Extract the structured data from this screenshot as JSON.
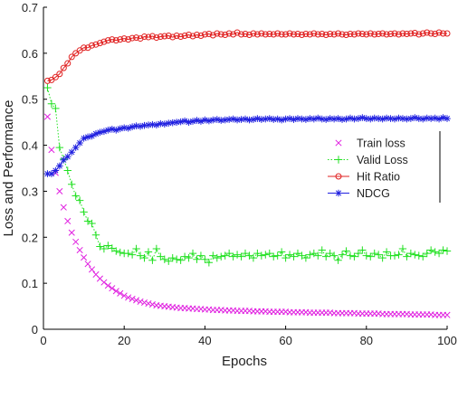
{
  "chart_data": {
    "type": "line",
    "title": "",
    "xlabel": "Epochs",
    "ylabel": "Loss and Performance",
    "xlim": [
      0,
      100
    ],
    "ylim": [
      0,
      0.7
    ],
    "xticks": [
      0,
      20,
      40,
      60,
      80,
      100
    ],
    "yticks": [
      0,
      0.1,
      0.2,
      0.3,
      0.4,
      0.5,
      0.6,
      0.7
    ],
    "xtick_labels": [
      "0",
      "20",
      "40",
      "60",
      "80",
      "100"
    ],
    "ytick_labels": [
      "0",
      "0.1",
      "0.2",
      "0.3",
      "0.4",
      "0.5",
      "0.6",
      "0.7"
    ],
    "grid": false,
    "legend_position": "right",
    "x": [
      1,
      2,
      3,
      4,
      5,
      6,
      7,
      8,
      9,
      10,
      11,
      12,
      13,
      14,
      15,
      16,
      17,
      18,
      19,
      20,
      21,
      22,
      23,
      24,
      25,
      26,
      27,
      28,
      29,
      30,
      31,
      32,
      33,
      34,
      35,
      36,
      37,
      38,
      39,
      40,
      41,
      42,
      43,
      44,
      45,
      46,
      47,
      48,
      49,
      50,
      51,
      52,
      53,
      54,
      55,
      56,
      57,
      58,
      59,
      60,
      61,
      62,
      63,
      64,
      65,
      66,
      67,
      68,
      69,
      70,
      71,
      72,
      73,
      74,
      75,
      76,
      77,
      78,
      79,
      80,
      81,
      82,
      83,
      84,
      85,
      86,
      87,
      88,
      89,
      90,
      91,
      92,
      93,
      94,
      95,
      96,
      97,
      98,
      99,
      100
    ],
    "series": [
      {
        "name": "Train loss",
        "color": "#e020e0",
        "line": "none",
        "marker": "x",
        "values": [
          0.462,
          0.39,
          0.34,
          0.3,
          0.265,
          0.235,
          0.21,
          0.19,
          0.172,
          0.156,
          0.142,
          0.13,
          0.119,
          0.11,
          0.102,
          0.095,
          0.089,
          0.083,
          0.078,
          0.073,
          0.069,
          0.066,
          0.063,
          0.06,
          0.058,
          0.056,
          0.054,
          0.052,
          0.051,
          0.05,
          0.049,
          0.048,
          0.047,
          0.046,
          0.046,
          0.045,
          0.045,
          0.044,
          0.044,
          0.043,
          0.043,
          0.042,
          0.042,
          0.042,
          0.041,
          0.041,
          0.041,
          0.04,
          0.04,
          0.04,
          0.04,
          0.039,
          0.039,
          0.039,
          0.039,
          0.038,
          0.038,
          0.038,
          0.038,
          0.038,
          0.037,
          0.037,
          0.037,
          0.037,
          0.037,
          0.036,
          0.036,
          0.036,
          0.036,
          0.036,
          0.036,
          0.035,
          0.035,
          0.035,
          0.035,
          0.035,
          0.035,
          0.034,
          0.034,
          0.034,
          0.034,
          0.034,
          0.034,
          0.033,
          0.033,
          0.033,
          0.033,
          0.033,
          0.033,
          0.033,
          0.032,
          0.032,
          0.032,
          0.032,
          0.032,
          0.032,
          0.031,
          0.031,
          0.031,
          0.031
        ]
      },
      {
        "name": "Valid Loss",
        "color": "#20e020",
        "line": "dotted",
        "marker": "+",
        "values": [
          0.525,
          0.49,
          0.48,
          0.395,
          0.37,
          0.345,
          0.315,
          0.29,
          0.28,
          0.255,
          0.235,
          0.23,
          0.205,
          0.18,
          0.175,
          0.182,
          0.176,
          0.17,
          0.167,
          0.165,
          0.165,
          0.162,
          0.175,
          0.16,
          0.155,
          0.168,
          0.15,
          0.175,
          0.158,
          0.152,
          0.148,
          0.155,
          0.152,
          0.15,
          0.158,
          0.155,
          0.165,
          0.152,
          0.16,
          0.152,
          0.145,
          0.16,
          0.155,
          0.158,
          0.16,
          0.165,
          0.158,
          0.162,
          0.158,
          0.165,
          0.16,
          0.155,
          0.165,
          0.16,
          0.162,
          0.165,
          0.158,
          0.16,
          0.168,
          0.155,
          0.162,
          0.158,
          0.165,
          0.16,
          0.155,
          0.162,
          0.165,
          0.16,
          0.172,
          0.158,
          0.165,
          0.16,
          0.15,
          0.162,
          0.17,
          0.16,
          0.158,
          0.165,
          0.172,
          0.16,
          0.158,
          0.165,
          0.162,
          0.155,
          0.168,
          0.16,
          0.16,
          0.162,
          0.175,
          0.158,
          0.165,
          0.162,
          0.16,
          0.158,
          0.165,
          0.172,
          0.168,
          0.165,
          0.172,
          0.17
        ]
      },
      {
        "name": "Hit Ratio",
        "color": "#e02020",
        "line": "solid",
        "marker": "o",
        "values": [
          0.54,
          0.542,
          0.548,
          0.555,
          0.568,
          0.578,
          0.592,
          0.6,
          0.606,
          0.612,
          0.612,
          0.617,
          0.619,
          0.622,
          0.625,
          0.628,
          0.63,
          0.628,
          0.63,
          0.632,
          0.63,
          0.633,
          0.634,
          0.632,
          0.636,
          0.635,
          0.637,
          0.634,
          0.636,
          0.637,
          0.638,
          0.635,
          0.638,
          0.636,
          0.638,
          0.64,
          0.637,
          0.64,
          0.638,
          0.641,
          0.642,
          0.639,
          0.643,
          0.641,
          0.64,
          0.643,
          0.641,
          0.645,
          0.641,
          0.642,
          0.64,
          0.643,
          0.641,
          0.643,
          0.641,
          0.642,
          0.641,
          0.643,
          0.641,
          0.641,
          0.643,
          0.641,
          0.642,
          0.64,
          0.642,
          0.641,
          0.643,
          0.641,
          0.642,
          0.64,
          0.642,
          0.641,
          0.643,
          0.641,
          0.64,
          0.642,
          0.641,
          0.643,
          0.642,
          0.641,
          0.643,
          0.641,
          0.642,
          0.643,
          0.641,
          0.642,
          0.643,
          0.641,
          0.643,
          0.642,
          0.643,
          0.644,
          0.641,
          0.643,
          0.645,
          0.643,
          0.642,
          0.645,
          0.643,
          0.643
        ]
      },
      {
        "name": "NDCG",
        "color": "#2020e0",
        "line": "solid",
        "marker": "*",
        "values": [
          0.338,
          0.338,
          0.345,
          0.355,
          0.368,
          0.375,
          0.385,
          0.395,
          0.405,
          0.415,
          0.418,
          0.42,
          0.425,
          0.428,
          0.43,
          0.433,
          0.435,
          0.433,
          0.436,
          0.438,
          0.437,
          0.44,
          0.442,
          0.441,
          0.443,
          0.444,
          0.445,
          0.444,
          0.447,
          0.446,
          0.448,
          0.449,
          0.45,
          0.451,
          0.453,
          0.45,
          0.452,
          0.454,
          0.452,
          0.455,
          0.453,
          0.455,
          0.456,
          0.454,
          0.455,
          0.456,
          0.457,
          0.455,
          0.456,
          0.457,
          0.455,
          0.456,
          0.458,
          0.456,
          0.457,
          0.458,
          0.456,
          0.457,
          0.455,
          0.457,
          0.458,
          0.456,
          0.458,
          0.457,
          0.456,
          0.458,
          0.457,
          0.459,
          0.457,
          0.456,
          0.458,
          0.457,
          0.458,
          0.456,
          0.457,
          0.459,
          0.457,
          0.458,
          0.46,
          0.458,
          0.457,
          0.459,
          0.458,
          0.457,
          0.459,
          0.458,
          0.457,
          0.459,
          0.458,
          0.457,
          0.458,
          0.46,
          0.458,
          0.457,
          0.459,
          0.458,
          0.459,
          0.457,
          0.46,
          0.458
        ]
      }
    ]
  }
}
